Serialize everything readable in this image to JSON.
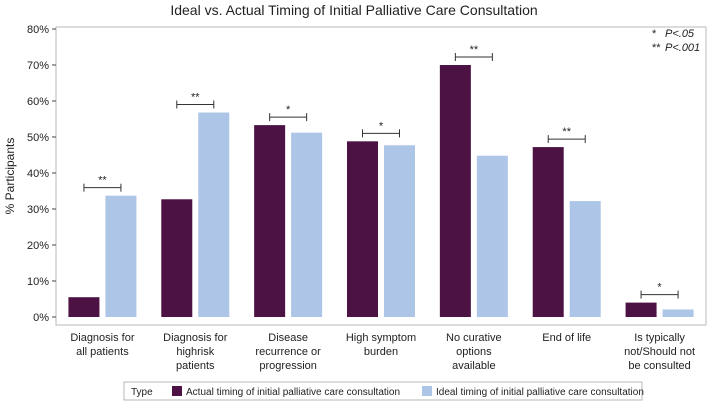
{
  "chart_data": {
    "type": "bar",
    "title": "Ideal vs. Actual Timing of Initial Palliative Care Consultation",
    "ylabel": "% Participants",
    "xlabel": "",
    "ylim": [
      0,
      80
    ],
    "yticks": [
      "0%",
      "10%",
      "20%",
      "30%",
      "40%",
      "50%",
      "60%",
      "70%",
      "80%"
    ],
    "categories": [
      [
        "Diagnosis for",
        "all patients"
      ],
      [
        "Diagnosis for",
        "highrisk",
        "patients"
      ],
      [
        "Disease",
        "recurrence or",
        "progression"
      ],
      [
        "High symptom",
        "burden"
      ],
      [
        "No curative",
        "options",
        "available"
      ],
      [
        "End of life"
      ],
      [
        "Is typically",
        "not/Should not",
        "be consulted"
      ]
    ],
    "series": [
      {
        "name": "Actual timing of initial palliative care consultation",
        "color": "#4d1244",
        "values": [
          5.5,
          32.7,
          53.3,
          48.8,
          70.0,
          47.2,
          4.0
        ]
      },
      {
        "name": "Ideal timing of initial palliative care consultation",
        "color": "#adc6e8",
        "values": [
          33.7,
          56.8,
          51.2,
          47.7,
          44.8,
          32.2,
          2.1
        ]
      }
    ],
    "significance": [
      "**",
      "**",
      "*",
      "*",
      "**",
      "**",
      "*"
    ],
    "annotations": [
      {
        "symbol": "*",
        "text": "P<.05"
      },
      {
        "symbol": "**",
        "text": "P<.001"
      }
    ],
    "legend": {
      "title": "Type",
      "position": "bottom"
    }
  }
}
